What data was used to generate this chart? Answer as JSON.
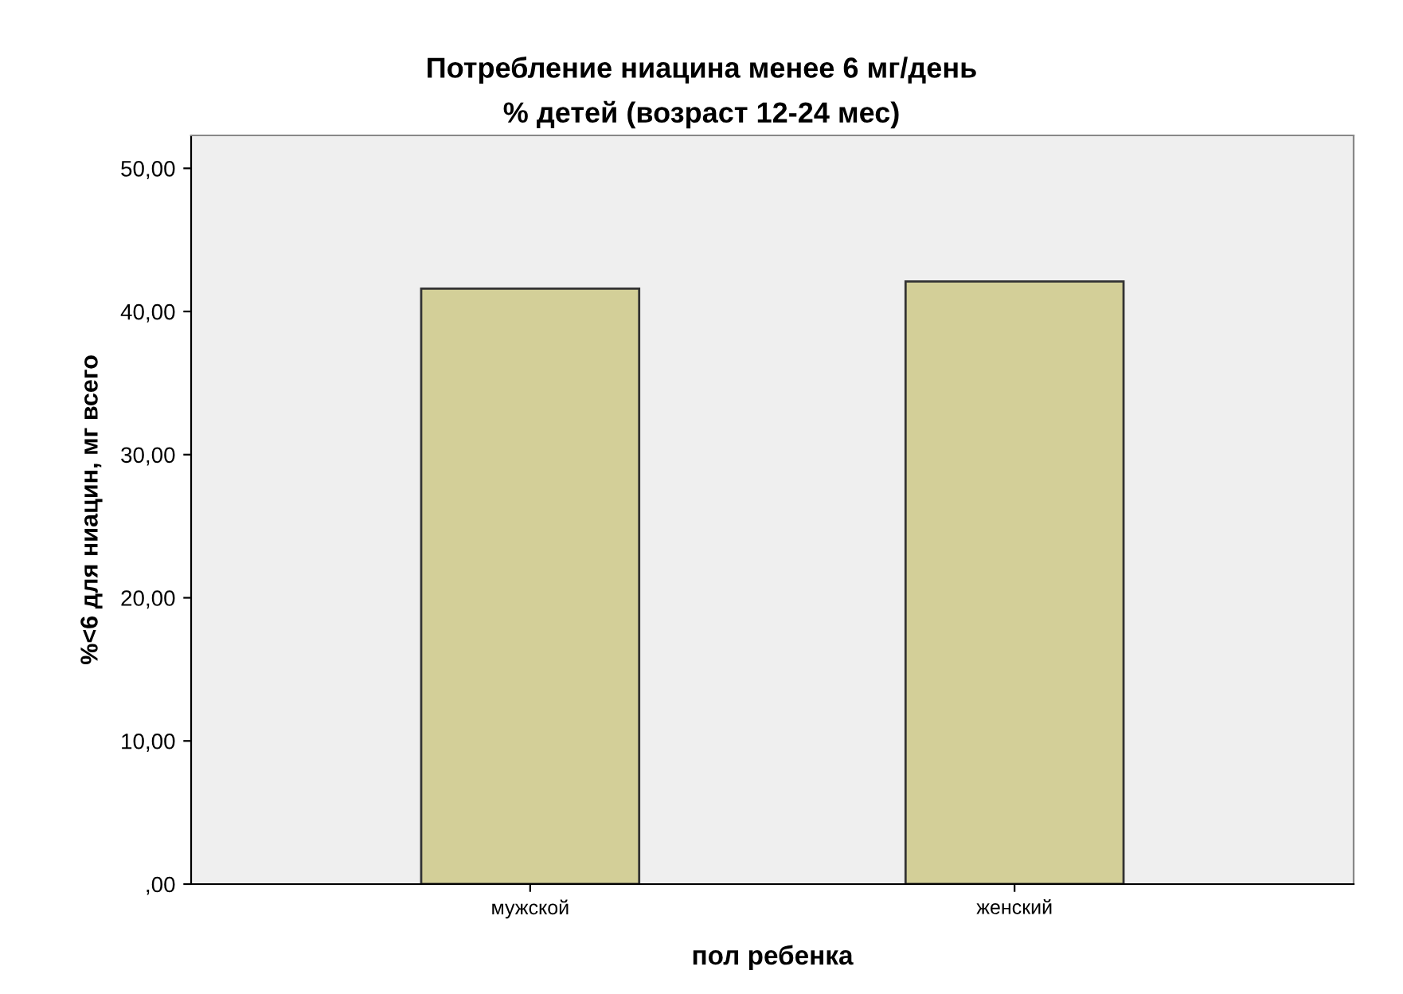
{
  "chart_data": {
    "type": "bar",
    "title": "Потребление ниацина менее 6 мг/день",
    "subtitle": "% детей (возраст 12-24 мес)",
    "xlabel": "пол ребенка",
    "ylabel": "%<6 для ниацин, мг всего",
    "categories": [
      "мужской",
      "женский"
    ],
    "values": [
      41.6,
      42.1
    ],
    "color": "#d3cf98",
    "ylim": [
      0,
      52.3
    ],
    "yticks": [
      {
        "value": 0,
        "label": ",00"
      },
      {
        "value": 10,
        "label": "10,00"
      },
      {
        "value": 20,
        "label": "20,00"
      },
      {
        "value": 30,
        "label": "30,00"
      },
      {
        "value": 40,
        "label": "40,00"
      },
      {
        "value": 50,
        "label": "50,00"
      }
    ],
    "grid": false
  }
}
